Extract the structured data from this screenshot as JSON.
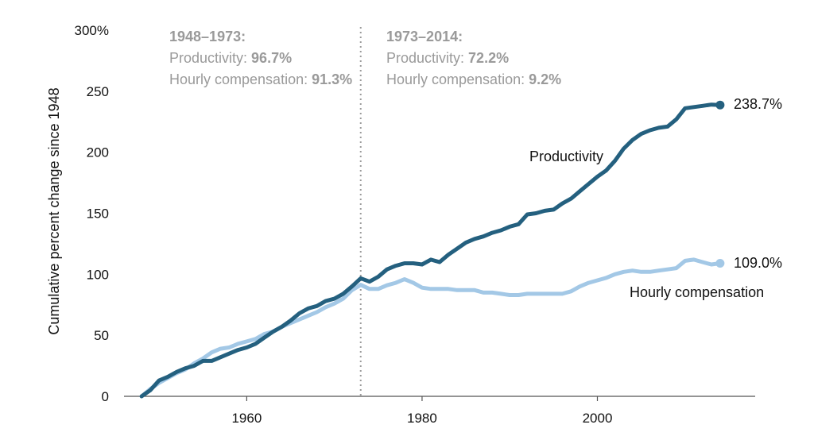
{
  "chart_data": {
    "type": "line",
    "title": "",
    "xlabel": "",
    "ylabel": "Cumulative percent change since 1948",
    "xlim": [
      1946,
      2018
    ],
    "ylim": [
      0,
      300
    ],
    "x_ticks": [
      1960,
      1980,
      2000
    ],
    "y_ticks": [
      {
        "value": 0,
        "label": "0"
      },
      {
        "value": 50,
        "label": "50"
      },
      {
        "value": 100,
        "label": "100"
      },
      {
        "value": 150,
        "label": "150"
      },
      {
        "value": 200,
        "label": "200"
      },
      {
        "value": 250,
        "label": "250"
      },
      {
        "value": 300,
        "label": "300%"
      }
    ],
    "divider_year": 1973,
    "periods": [
      {
        "heading": "1948–1973:",
        "prod_label": "Productivity: ",
        "prod_value": "96.7%",
        "comp_label": "Hourly compensation: ",
        "comp_value": "91.3%"
      },
      {
        "heading": "1973–2014:",
        "prod_label": "Productivity: ",
        "prod_value": "72.2%",
        "comp_label": "Hourly compensation: ",
        "comp_value": "9.2%"
      }
    ],
    "series": [
      {
        "name": "Productivity",
        "color": "#24607f",
        "end_label": "238.7%",
        "x": [
          1948,
          1949,
          1950,
          1951,
          1952,
          1953,
          1954,
          1955,
          1956,
          1957,
          1958,
          1959,
          1960,
          1961,
          1962,
          1963,
          1964,
          1965,
          1966,
          1967,
          1968,
          1969,
          1970,
          1971,
          1972,
          1973,
          1974,
          1975,
          1976,
          1977,
          1978,
          1979,
          1980,
          1981,
          1982,
          1983,
          1984,
          1985,
          1986,
          1987,
          1988,
          1989,
          1990,
          1991,
          1992,
          1993,
          1994,
          1995,
          1996,
          1997,
          1998,
          1999,
          2000,
          2001,
          2002,
          2003,
          2004,
          2005,
          2006,
          2007,
          2008,
          2009,
          2010,
          2011,
          2012,
          2013,
          2014
        ],
        "values": [
          0,
          5,
          13,
          16,
          20,
          23,
          25,
          29,
          29,
          32,
          35,
          38,
          40,
          43,
          48,
          53,
          57,
          62,
          68,
          72,
          74,
          78,
          80,
          84,
          90,
          96.7,
          94,
          98,
          104,
          107,
          109,
          109,
          108,
          112,
          110,
          116,
          121,
          126,
          129,
          131,
          134,
          136,
          139,
          141,
          149,
          150,
          152,
          153,
          158,
          162,
          168,
          174,
          180,
          185,
          193,
          203,
          210,
          215,
          218,
          220,
          221,
          227,
          236,
          237,
          238,
          239,
          238.7
        ]
      },
      {
        "name": "Hourly compensation",
        "color": "#a3c8e6",
        "end_label": "109.0%",
        "x": [
          1948,
          1949,
          1950,
          1951,
          1952,
          1953,
          1954,
          1955,
          1956,
          1957,
          1958,
          1959,
          1960,
          1961,
          1962,
          1963,
          1964,
          1965,
          1966,
          1967,
          1968,
          1969,
          1970,
          1971,
          1972,
          1973,
          1974,
          1975,
          1976,
          1977,
          1978,
          1979,
          1980,
          1981,
          1982,
          1983,
          1984,
          1985,
          1986,
          1987,
          1988,
          1989,
          1990,
          1991,
          1992,
          1993,
          1994,
          1995,
          1996,
          1997,
          1998,
          1999,
          2000,
          2001,
          2002,
          2003,
          2004,
          2005,
          2006,
          2007,
          2008,
          2009,
          2010,
          2011,
          2012,
          2013,
          2014
        ],
        "values": [
          0,
          6,
          11,
          15,
          19,
          22,
          27,
          31,
          36,
          39,
          40,
          43,
          45,
          47,
          51,
          53,
          57,
          60,
          63,
          66,
          69,
          73,
          76,
          80,
          87,
          91.3,
          88,
          88,
          91,
          93,
          96,
          93,
          89,
          88,
          88,
          88,
          87,
          87,
          87,
          85,
          85,
          84,
          83,
          83,
          84,
          84,
          84,
          84,
          84,
          86,
          90,
          93,
          95,
          97,
          100,
          102,
          103,
          102,
          102,
          103,
          104,
          105,
          111,
          112,
          110,
          108,
          109.0
        ]
      }
    ]
  }
}
